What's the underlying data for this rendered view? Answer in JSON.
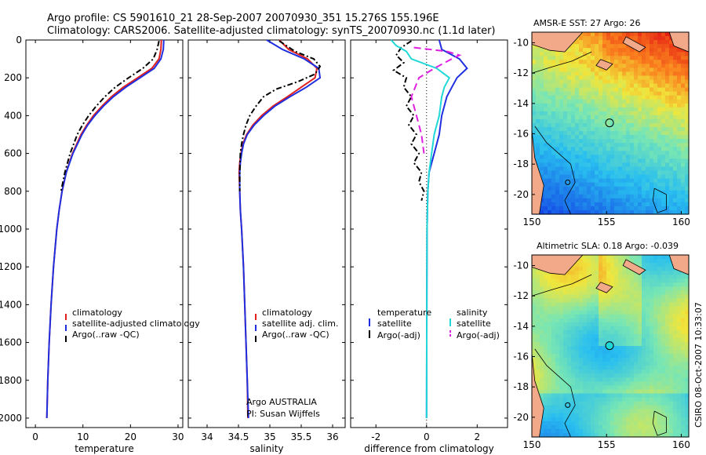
{
  "header": {
    "line1": "Argo profile: CS 5901610_21 28-Sep-2007 20070930_351 15.276S 155.196E",
    "line2": "Climatology: CARS2006. Satellite-adjusted climatology: synTS_20070930.nc (1.1d later)"
  },
  "side_stamp": "CSIRO 08-Oct-2007 10:33:07",
  "colors": {
    "climatology": "#e02020",
    "satellite": "#1f2fe0",
    "argo": "#000000",
    "cyan": "#20d8d8",
    "magenta": "#e020e0"
  },
  "chart_data": [
    {
      "type": "line",
      "id": "temperature",
      "xlabel": "temperature",
      "ylabel": "",
      "xlim": [
        -2,
        31
      ],
      "ylim": [
        0,
        2050
      ],
      "y_reversed": true,
      "xticks": [
        0,
        10,
        20,
        30
      ],
      "xtick_labels": [
        "0",
        "10",
        "20",
        "30"
      ],
      "yticks": [
        0,
        200,
        400,
        600,
        800,
        1000,
        1200,
        1400,
        1600,
        1800,
        2000
      ],
      "ytick_labels": [
        "0",
        "200",
        "400",
        "600",
        "800",
        "1000",
        "1200",
        "1400",
        "1600",
        "1800",
        "2000"
      ],
      "series": [
        {
          "name": "climatology",
          "color": "#e02020",
          "dash": "",
          "depth": [
            0,
            50,
            100,
            150,
            200,
            250,
            300,
            350,
            400,
            450,
            500,
            600,
            700,
            800,
            900,
            1000,
            1200,
            1400,
            1600,
            1800,
            2000
          ],
          "values": [
            26.5,
            26.4,
            26.0,
            24.5,
            21.5,
            18.5,
            16.0,
            14.0,
            12.2,
            10.8,
            9.6,
            7.8,
            6.5,
            5.6,
            5.0,
            4.5,
            3.8,
            3.3,
            2.9,
            2.6,
            2.4
          ]
        },
        {
          "name": "satellite-adjusted climatology",
          "color": "#1f2fe0",
          "dash": "",
          "depth": [
            0,
            50,
            100,
            150,
            200,
            250,
            300,
            350,
            400,
            450,
            500,
            600,
            700,
            800,
            900,
            1000,
            1200,
            1400,
            1600,
            1800,
            2000
          ],
          "values": [
            27.0,
            26.9,
            26.4,
            25.0,
            22.0,
            19.0,
            16.4,
            14.3,
            12.5,
            11.0,
            9.8,
            7.9,
            6.5,
            5.6,
            5.0,
            4.5,
            3.8,
            3.3,
            2.9,
            2.6,
            2.4
          ]
        },
        {
          "name": "Argo(..raw -QC)",
          "color": "#000000",
          "dash": "7,3,2,3",
          "depth": [
            5,
            50,
            100,
            150,
            200,
            250,
            300,
            350,
            400,
            450,
            500,
            600,
            700,
            800
          ],
          "values": [
            26.0,
            25.6,
            24.8,
            22.6,
            19.6,
            16.8,
            14.6,
            12.8,
            11.2,
            9.9,
            8.8,
            7.3,
            6.2,
            5.4
          ]
        }
      ],
      "legend": {
        "position": "lower-right",
        "entries": [
          "climatology",
          "satellite-adjusted climatology",
          "Argo(..raw -QC)"
        ]
      }
    },
    {
      "type": "line",
      "id": "salinity",
      "xlabel": "salinity",
      "xlim": [
        33.7,
        36.2
      ],
      "ylim": [
        0,
        2050
      ],
      "y_reversed": true,
      "xticks": [
        34,
        34.5,
        35,
        35.5,
        36
      ],
      "xtick_labels": [
        "34",
        "34.5",
        "35",
        "35.5",
        "36"
      ],
      "series": [
        {
          "name": "climatology",
          "color": "#e02020",
          "dash": "",
          "depth": [
            0,
            50,
            100,
            150,
            200,
            250,
            300,
            350,
            400,
            450,
            500,
            550,
            600,
            650,
            700,
            800,
            900,
            1000,
            1200,
            1400,
            1600,
            1800,
            2000
          ],
          "values": [
            35.15,
            35.3,
            35.6,
            35.75,
            35.72,
            35.5,
            35.28,
            35.05,
            34.87,
            34.73,
            34.63,
            34.57,
            34.54,
            34.52,
            34.51,
            34.52,
            34.53,
            34.55,
            34.58,
            34.6,
            34.62,
            34.64,
            34.65
          ]
        },
        {
          "name": "satellite adj. clim.",
          "color": "#1f2fe0",
          "dash": "",
          "depth": [
            0,
            50,
            100,
            150,
            200,
            250,
            300,
            350,
            400,
            450,
            500,
            550,
            600,
            650,
            700,
            800,
            900,
            1000,
            1200,
            1400,
            1600,
            1800,
            2000
          ],
          "values": [
            34.95,
            35.2,
            35.55,
            35.78,
            35.8,
            35.58,
            35.32,
            35.08,
            34.9,
            34.75,
            34.64,
            34.58,
            34.55,
            34.53,
            34.52,
            34.52,
            34.53,
            34.55,
            34.58,
            34.6,
            34.62,
            34.64,
            34.66
          ]
        },
        {
          "name": "Argo(..raw -QC)",
          "color": "#000000",
          "dash": "7,3,2,3",
          "depth": [
            5,
            60,
            100,
            140,
            180,
            220,
            260,
            300,
            350,
            400,
            450,
            500,
            550,
            600,
            700,
            800
          ],
          "values": [
            35.15,
            35.4,
            35.7,
            35.8,
            35.72,
            35.45,
            35.1,
            34.9,
            34.78,
            34.68,
            34.62,
            34.58,
            34.55,
            34.53,
            34.52,
            34.52
          ]
        }
      ],
      "legend": {
        "position": "lower-right",
        "entries": [
          "climatology",
          "satellite adj. clim.",
          "Argo(..raw -QC)"
        ]
      },
      "annotation": [
        "Argo AUSTRALIA",
        "PI: Susan Wijffels"
      ]
    },
    {
      "type": "line",
      "id": "difference",
      "xlabel": "difference from climatology",
      "xlim": [
        -3,
        3.2
      ],
      "ylim": [
        0,
        2050
      ],
      "y_reversed": true,
      "xticks": [
        -2,
        0,
        2
      ],
      "xtick_labels": [
        "-2",
        "0",
        "2"
      ],
      "series": [
        {
          "name": "temperature satellite",
          "color": "#1f2fe0",
          "dash": "",
          "depth": [
            0,
            50,
            100,
            150,
            200,
            250,
            300,
            400,
            500,
            600,
            700,
            800,
            1000,
            1400,
            2000
          ],
          "values": [
            0.5,
            0.6,
            1.3,
            1.6,
            1.2,
            1.0,
            0.8,
            0.6,
            0.5,
            0.3,
            0.1,
            0.05,
            0.02,
            0.01,
            0.0
          ]
        },
        {
          "name": "temperature Argo(-adj)",
          "color": "#000000",
          "dash": "7,3,2,3",
          "depth": [
            5,
            40,
            80,
            120,
            160,
            200,
            250,
            300,
            350,
            400,
            450,
            500,
            550,
            600,
            650,
            700,
            750,
            800,
            850
          ],
          "values": [
            -0.6,
            -1.0,
            -1.2,
            -0.9,
            -1.3,
            -0.8,
            -0.9,
            -0.6,
            -0.8,
            -0.5,
            -0.7,
            -0.4,
            -0.6,
            -0.3,
            -0.5,
            -0.2,
            -0.3,
            -0.1,
            -0.2
          ]
        },
        {
          "name": "salinity satellite",
          "color": "#20d8d8",
          "dash": "",
          "depth": [
            0,
            30,
            60,
            100,
            150,
            200,
            250,
            300,
            400,
            500,
            600,
            700,
            800,
            1000,
            1400,
            2000
          ],
          "values": [
            -1.4,
            -1.2,
            -0.8,
            -0.6,
            0.4,
            0.9,
            0.7,
            0.6,
            0.5,
            0.3,
            0.2,
            0.1,
            0.05,
            0.02,
            0.01,
            0.0
          ]
        },
        {
          "name": "salinity Argo(-adj)",
          "color": "#e020e0",
          "dash": "9,5",
          "depth": [
            40,
            60,
            80,
            100,
            150,
            200,
            300,
            400,
            500,
            600
          ],
          "values": [
            -0.5,
            0.8,
            1.3,
            1.0,
            0.3,
            -0.3,
            -0.6,
            -0.4,
            -0.2,
            -0.1
          ]
        }
      ],
      "legend_left": {
        "heading": "temperature",
        "entries": [
          "satellite",
          "Argo(-adj)"
        ]
      },
      "legend_right": {
        "heading": "salinity",
        "entries": [
          "satellite",
          "Argo(-adj)"
        ]
      }
    },
    {
      "type": "heatmap",
      "id": "sst_map",
      "title": "AMSR-E SST: 27 Argo: 26",
      "xlim": [
        150,
        160.5
      ],
      "ylim": [
        -21.3,
        -9.3
      ],
      "xticks": [
        150,
        155,
        160
      ],
      "xtick_labels": [
        "150",
        "155",
        "160"
      ],
      "yticks": [
        -10,
        -12,
        -14,
        -16,
        -18,
        -20
      ],
      "ytick_labels": [
        "-10",
        "-12",
        "-14",
        "-16",
        "-18",
        "-20"
      ],
      "profile_marker": {
        "lon": 155.2,
        "lat": -15.28
      },
      "other_marker": {
        "lon": 152.4,
        "lat": -19.2
      }
    },
    {
      "type": "heatmap",
      "id": "sla_map",
      "title": "Altimetric SLA: 0.18 Argo: -0.039",
      "xlim": [
        150,
        160.5
      ],
      "ylim": [
        -21.3,
        -9.3
      ],
      "xticks": [
        150,
        155,
        160
      ],
      "xtick_labels": [
        "150",
        "155",
        "160"
      ],
      "yticks": [
        -10,
        -12,
        -14,
        -16,
        -18,
        -20
      ],
      "ytick_labels": [
        "-10",
        "-12",
        "-14",
        "-16",
        "-18",
        "-20"
      ],
      "profile_marker": {
        "lon": 155.2,
        "lat": -15.28
      },
      "other_marker": {
        "lon": 152.4,
        "lat": -19.2
      }
    }
  ]
}
